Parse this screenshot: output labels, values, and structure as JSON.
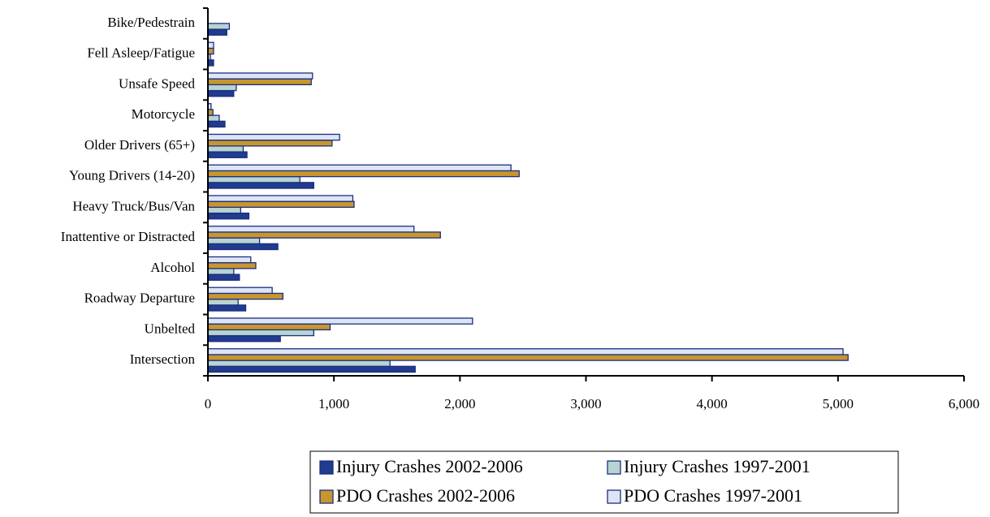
{
  "chart_data": {
    "type": "bar",
    "orientation": "horizontal",
    "categories": [
      "Bike/Pedestrain",
      "Fell Asleep/Fatigue",
      "Unsafe Speed",
      "Motorcycle",
      "Older Drivers (65+)",
      "Young Drivers (14-20)",
      "Heavy Truck/Bus/Van",
      "Inattentive or Distracted",
      "Alcohol",
      "Roadway Departure",
      "Unbelted",
      "Intersection"
    ],
    "series": [
      {
        "name": "Injury Crashes 2002-2006",
        "color": "#213b8e",
        "values": [
          150,
          45,
          205,
          135,
          310,
          840,
          325,
          555,
          250,
          300,
          575,
          1645
        ]
      },
      {
        "name": "Injury Crashes 1997-2001",
        "color": "#b8d4d0",
        "values": [
          170,
          20,
          225,
          90,
          280,
          730,
          260,
          410,
          205,
          240,
          840,
          1445
        ]
      },
      {
        "name": "PDO Crashes 2002-2006",
        "color": "#c8962e",
        "values": [
          0,
          45,
          820,
          40,
          985,
          2470,
          1160,
          1845,
          380,
          595,
          970,
          5080
        ]
      },
      {
        "name": "PDO Crashes 1997-2001",
        "color": "#dde4f5",
        "values": [
          0,
          45,
          830,
          25,
          1045,
          2405,
          1150,
          1635,
          340,
          510,
          2100,
          5040
        ]
      }
    ],
    "xlim": [
      0,
      6000
    ],
    "xticks": [
      0,
      {
        "value": 1000,
        "label": "1,000"
      },
      {
        "value": 2000,
        "label": "2,000"
      },
      {
        "value": 3000,
        "label": "3,000"
      },
      {
        "value": 4000,
        "label": "4,000"
      },
      {
        "value": 5000,
        "label": "5,000"
      },
      {
        "value": 6000,
        "label": "6,000"
      }
    ]
  }
}
